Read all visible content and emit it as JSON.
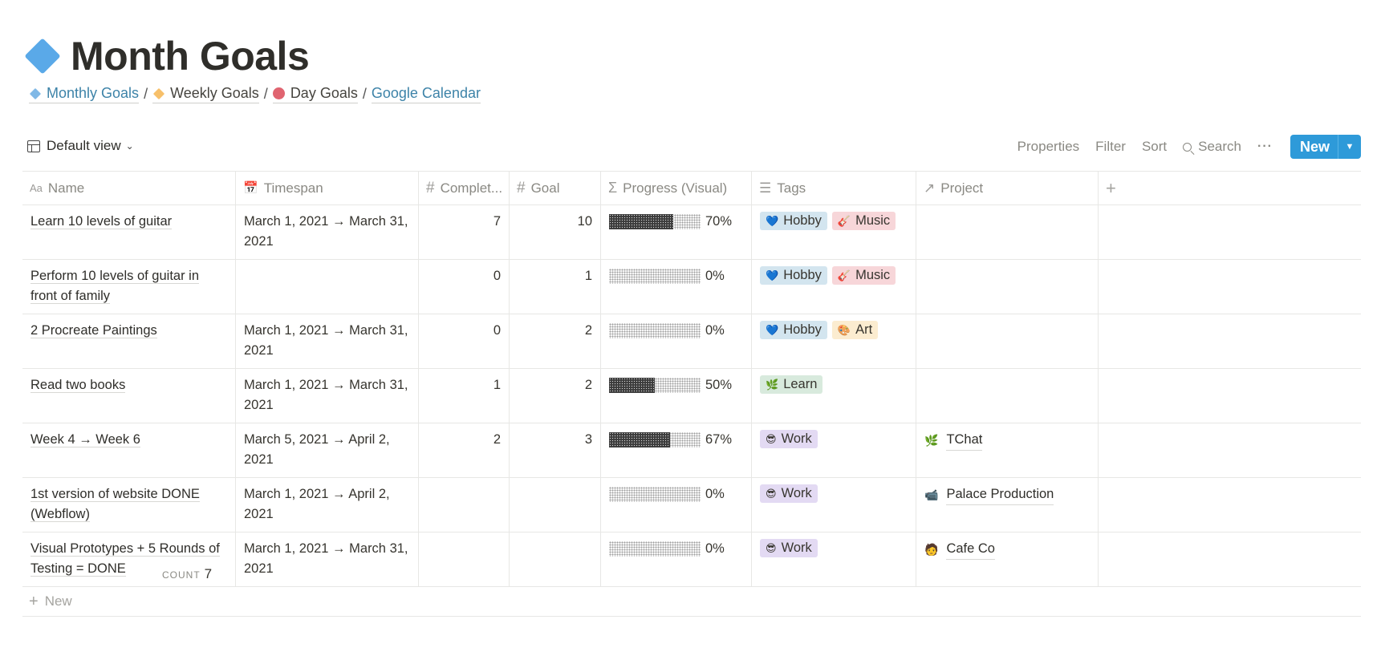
{
  "page": {
    "title": "Month Goals",
    "icon": "blue-diamond-icon",
    "accent": "#5aa9e8"
  },
  "breadcrumbs": [
    {
      "label": "Monthly Goals",
      "icon": "blue-diamond-icon"
    },
    {
      "label": "Weekly Goals",
      "icon": "orange-diamond-icon"
    },
    {
      "label": "Day Goals",
      "icon": "red-circle-icon"
    },
    {
      "label": "Google Calendar"
    }
  ],
  "toolbar": {
    "view_label": "Default view",
    "properties": "Properties",
    "filter": "Filter",
    "sort": "Sort",
    "search": "Search",
    "more": "···",
    "new_label": "New",
    "new_color": "#2e9ad9"
  },
  "columns": {
    "name": "Name",
    "timespan": "Timespan",
    "completed": "Complet...",
    "goal": "Goal",
    "progress": "Progress (Visual)",
    "tags": "Tags",
    "project": "Project",
    "add": "+"
  },
  "rows": [
    {
      "name": "Learn 10 levels of guitar",
      "timespan": "March 1, 2021 → March 31, 2021",
      "completed": "7",
      "goal": "10",
      "progress": 0.7,
      "progress_label": "70%",
      "tags": [
        {
          "label": "Hobby",
          "kind": "hobby",
          "emoji": "💙"
        },
        {
          "label": "Music",
          "kind": "music",
          "emoji": "🎸"
        }
      ],
      "project": null
    },
    {
      "name": "Perform 10 levels of guitar in front of family",
      "timespan": "",
      "completed": "0",
      "goal": "1",
      "progress": 0,
      "progress_label": "0%",
      "tags": [
        {
          "label": "Hobby",
          "kind": "hobby",
          "emoji": "💙"
        },
        {
          "label": "Music",
          "kind": "music",
          "emoji": "🎸"
        }
      ],
      "project": null
    },
    {
      "name": "2 Procreate Paintings",
      "timespan": "March 1, 2021 → March 31, 2021",
      "completed": "0",
      "goal": "2",
      "progress": 0,
      "progress_label": "0%",
      "tags": [
        {
          "label": "Hobby",
          "kind": "hobby",
          "emoji": "💙"
        },
        {
          "label": "Art",
          "kind": "art",
          "emoji": "🎨"
        }
      ],
      "project": null
    },
    {
      "name": "Read two books",
      "timespan": "March 1, 2021 → March 31, 2021",
      "completed": "1",
      "goal": "2",
      "progress": 0.5,
      "progress_label": "50%",
      "tags": [
        {
          "label": "Learn",
          "kind": "learn",
          "emoji": "🌿"
        }
      ],
      "project": null
    },
    {
      "name": "Week 4 → Week 6",
      "timespan": "March 5, 2021 → April 2, 2021",
      "completed": "2",
      "goal": "3",
      "progress": 0.67,
      "progress_label": "67%",
      "tags": [
        {
          "label": "Work",
          "kind": "work",
          "emoji": "😎"
        }
      ],
      "project": {
        "label": "TChat",
        "emoji": "🌿"
      }
    },
    {
      "name": "1st version of website DONE (Webflow)",
      "timespan": "March 1, 2021 → April 2, 2021",
      "completed": "",
      "goal": "",
      "progress": 0,
      "progress_label": "0%",
      "tags": [
        {
          "label": "Work",
          "kind": "work",
          "emoji": "😎"
        }
      ],
      "project": {
        "label": "Palace Production",
        "emoji": "📹"
      }
    },
    {
      "name": "Visual Prototypes + 5 Rounds of Testing = DONE",
      "timespan": "March 1, 2021 → March 31, 2021",
      "completed": "",
      "goal": "",
      "progress": 0,
      "progress_label": "0%",
      "tags": [
        {
          "label": "Work",
          "kind": "work",
          "emoji": "😎"
        }
      ],
      "project": {
        "label": "Cafe Co",
        "emoji": "🧑"
      }
    }
  ],
  "footer": {
    "new_label": "New",
    "count_label": "COUNT",
    "count_value": "7"
  }
}
